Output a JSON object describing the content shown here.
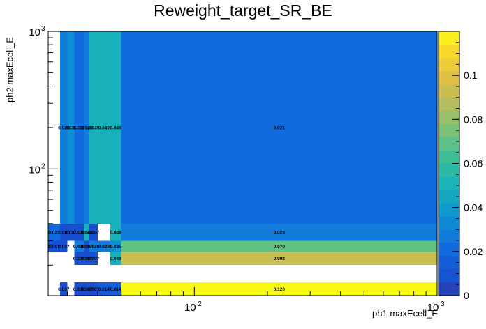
{
  "title": "Reweight_target_SR_BE",
  "chart_data": {
    "type": "heatmap",
    "title": "Reweight_target_SR_BE",
    "xlabel": "ph1 maxEcell_E",
    "ylabel": "ph2 maxEcell_E",
    "xscale": "log",
    "yscale": "log",
    "xlim": [
      25,
      1000
    ],
    "ylim": [
      12,
      1000
    ],
    "x_tick_labels": [
      "10^2",
      "10^3"
    ],
    "y_tick_labels": [
      "10^2",
      "10^3"
    ],
    "colorbar": {
      "range": [
        0,
        0.12
      ],
      "tick_labels": [
        "0",
        "0.02",
        "0.04",
        "0.06",
        "0.08",
        "0.1"
      ]
    },
    "x_bins": [
      25,
      28,
      30,
      32,
      35,
      37,
      40,
      45,
      50,
      1000
    ],
    "y_bins": [
      12,
      15,
      20,
      25,
      30,
      40,
      1000
    ],
    "cells": [
      {
        "xbin": 0,
        "ybin": 5,
        "value": 0.0,
        "label": ""
      },
      {
        "xbin": 1,
        "ybin": 5,
        "value": 0.028,
        "label": "0.028"
      },
      {
        "xbin": 2,
        "ybin": 5,
        "value": 0.035,
        "label": "0.035"
      },
      {
        "xbin": 3,
        "ybin": 5,
        "value": 0.021,
        "label": "0.021"
      },
      {
        "xbin": 4,
        "ybin": 5,
        "value": 0.028,
        "label": "0.028"
      },
      {
        "xbin": 5,
        "ybin": 5,
        "value": 0.049,
        "label": "0.049"
      },
      {
        "xbin": 6,
        "ybin": 5,
        "value": 0.049,
        "label": "0.049"
      },
      {
        "xbin": 7,
        "ybin": 5,
        "value": 0.049,
        "label": "0.049"
      },
      {
        "xbin": 8,
        "ybin": 5,
        "value": 0.021,
        "label": "0.021"
      },
      {
        "xbin": 0,
        "ybin": 4,
        "value": 0.021,
        "label": "0.021"
      },
      {
        "xbin": 1,
        "ybin": 4,
        "value": 0.007,
        "label": "0.007"
      },
      {
        "xbin": 2,
        "ybin": 4,
        "value": 0.007,
        "label": "0.007"
      },
      {
        "xbin": 3,
        "ybin": 4,
        "value": 0.007,
        "label": "0.007"
      },
      {
        "xbin": 4,
        "ybin": 4,
        "value": 0.049,
        "label": "0.049"
      },
      {
        "xbin": 5,
        "ybin": 4,
        "value": 0.007,
        "label": "0.007"
      },
      {
        "xbin": 6,
        "ybin": 4,
        "value": 0.0,
        "label": ""
      },
      {
        "xbin": 7,
        "ybin": 4,
        "value": 0.049,
        "label": "0.049"
      },
      {
        "xbin": 8,
        "ybin": 4,
        "value": 0.028,
        "label": "0.028"
      },
      {
        "xbin": 0,
        "ybin": 3,
        "value": 0.007,
        "label": "0.007"
      },
      {
        "xbin": 1,
        "ybin": 3,
        "value": 0.007,
        "label": "0.007"
      },
      {
        "xbin": 2,
        "ybin": 3,
        "value": 0.0,
        "label": ""
      },
      {
        "xbin": 3,
        "ybin": 3,
        "value": 0.028,
        "label": "0.028"
      },
      {
        "xbin": 4,
        "ybin": 3,
        "value": 0.007,
        "label": "0.007"
      },
      {
        "xbin": 5,
        "ybin": 3,
        "value": 0.028,
        "label": "0.028"
      },
      {
        "xbin": 6,
        "ybin": 3,
        "value": 0.028,
        "label": "0.028"
      },
      {
        "xbin": 7,
        "ybin": 3,
        "value": 0.035,
        "label": "0.035"
      },
      {
        "xbin": 8,
        "ybin": 3,
        "value": 0.07,
        "label": "0.070"
      },
      {
        "xbin": 0,
        "ybin": 2,
        "value": 0.0,
        "label": ""
      },
      {
        "xbin": 1,
        "ybin": 2,
        "value": 0.0,
        "label": ""
      },
      {
        "xbin": 2,
        "ybin": 2,
        "value": 0.0,
        "label": ""
      },
      {
        "xbin": 3,
        "ybin": 2,
        "value": 0.007,
        "label": "0.007"
      },
      {
        "xbin": 4,
        "ybin": 2,
        "value": 0.007,
        "label": "0.007"
      },
      {
        "xbin": 5,
        "ybin": 2,
        "value": 0.007,
        "label": "0.007"
      },
      {
        "xbin": 6,
        "ybin": 2,
        "value": 0.0,
        "label": ""
      },
      {
        "xbin": 7,
        "ybin": 2,
        "value": 0.049,
        "label": "0.049"
      },
      {
        "xbin": 8,
        "ybin": 2,
        "value": 0.092,
        "label": "0.092"
      },
      {
        "xbin": 0,
        "ybin": 1,
        "value": 0.0,
        "label": ""
      },
      {
        "xbin": 1,
        "ybin": 1,
        "value": 0.0,
        "label": ""
      },
      {
        "xbin": 2,
        "ybin": 1,
        "value": 0.0,
        "label": ""
      },
      {
        "xbin": 3,
        "ybin": 1,
        "value": 0.0,
        "label": ""
      },
      {
        "xbin": 4,
        "ybin": 1,
        "value": 0.0,
        "label": ""
      },
      {
        "xbin": 5,
        "ybin": 1,
        "value": 0.0,
        "label": ""
      },
      {
        "xbin": 6,
        "ybin": 1,
        "value": 0.0,
        "label": ""
      },
      {
        "xbin": 7,
        "ybin": 1,
        "value": 0.0,
        "label": ""
      },
      {
        "xbin": 8,
        "ybin": 1,
        "value": 0.0,
        "label": ""
      },
      {
        "xbin": 0,
        "ybin": 0,
        "value": 0.0,
        "label": ""
      },
      {
        "xbin": 1,
        "ybin": 0,
        "value": 0.007,
        "label": "0.007"
      },
      {
        "xbin": 2,
        "ybin": 0,
        "value": 0.0,
        "label": ""
      },
      {
        "xbin": 3,
        "ybin": 0,
        "value": 0.007,
        "label": "0.007"
      },
      {
        "xbin": 4,
        "ybin": 0,
        "value": 0.007,
        "label": "0.007"
      },
      {
        "xbin": 5,
        "ybin": 0,
        "value": 0.007,
        "label": "0.007"
      },
      {
        "xbin": 6,
        "ybin": 0,
        "value": 0.014,
        "label": "0.014"
      },
      {
        "xbin": 7,
        "ybin": 0,
        "value": 0.014,
        "label": "0.014"
      },
      {
        "xbin": 8,
        "ybin": 0,
        "value": 0.12,
        "label": "0.120"
      }
    ],
    "grid": false,
    "legend": "colorbar-right"
  }
}
